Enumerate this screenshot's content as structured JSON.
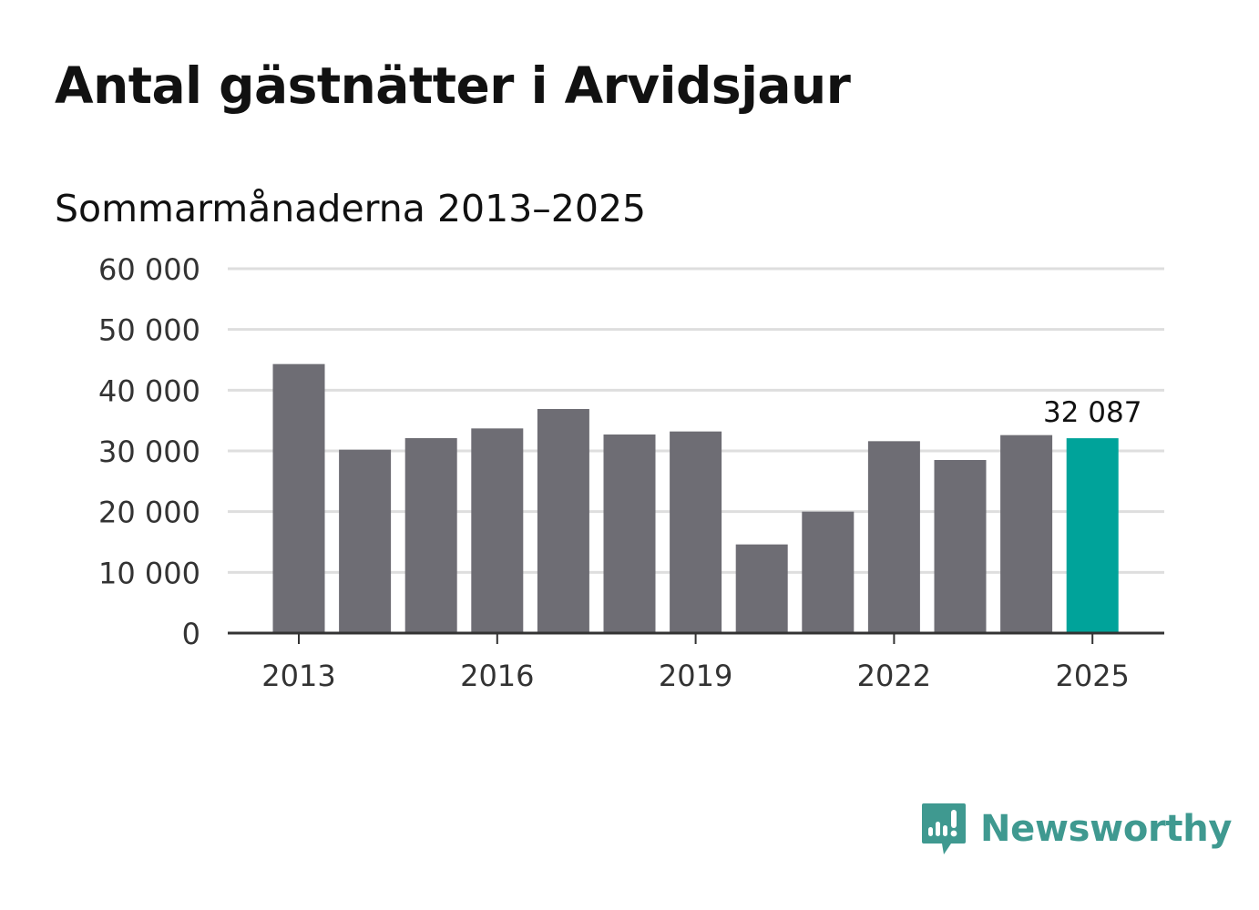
{
  "title": "Antal gästnätter i Arvidsjaur",
  "subtitle": "Sommarmånaderna 2013–2025",
  "brand": {
    "name": "Newsworthy",
    "icon": "newsworthy-logo-icon",
    "color": "#3f9990"
  },
  "colors": {
    "bar": "#6e6d74",
    "highlight": "#00a39a",
    "grid": "#dedede",
    "axis": "#333333"
  },
  "chart_data": {
    "type": "bar",
    "categories": [
      "2013",
      "2014",
      "2015",
      "2016",
      "2017",
      "2018",
      "2019",
      "2020",
      "2021",
      "2022",
      "2023",
      "2024",
      "2025"
    ],
    "values": [
      44300,
      30200,
      32100,
      33700,
      36900,
      32700,
      33200,
      14600,
      20000,
      31600,
      28500,
      32600,
      32087
    ],
    "highlight_index": 12,
    "data_labels": [
      {
        "index": 12,
        "text": "32 087"
      }
    ],
    "x_tick_labels": [
      "2013",
      "2016",
      "2019",
      "2022",
      "2025"
    ],
    "y_ticks": [
      0,
      10000,
      20000,
      30000,
      40000,
      50000,
      60000
    ],
    "y_tick_labels": [
      "0",
      "10 000",
      "20 000",
      "30 000",
      "40 000",
      "50 000",
      "60 000"
    ],
    "ylim": [
      0,
      60000
    ],
    "grid": true,
    "legend": false,
    "title": "Antal gästnätter i Arvidsjaur",
    "subtitle": "Sommarmånaderna 2013–2025"
  }
}
